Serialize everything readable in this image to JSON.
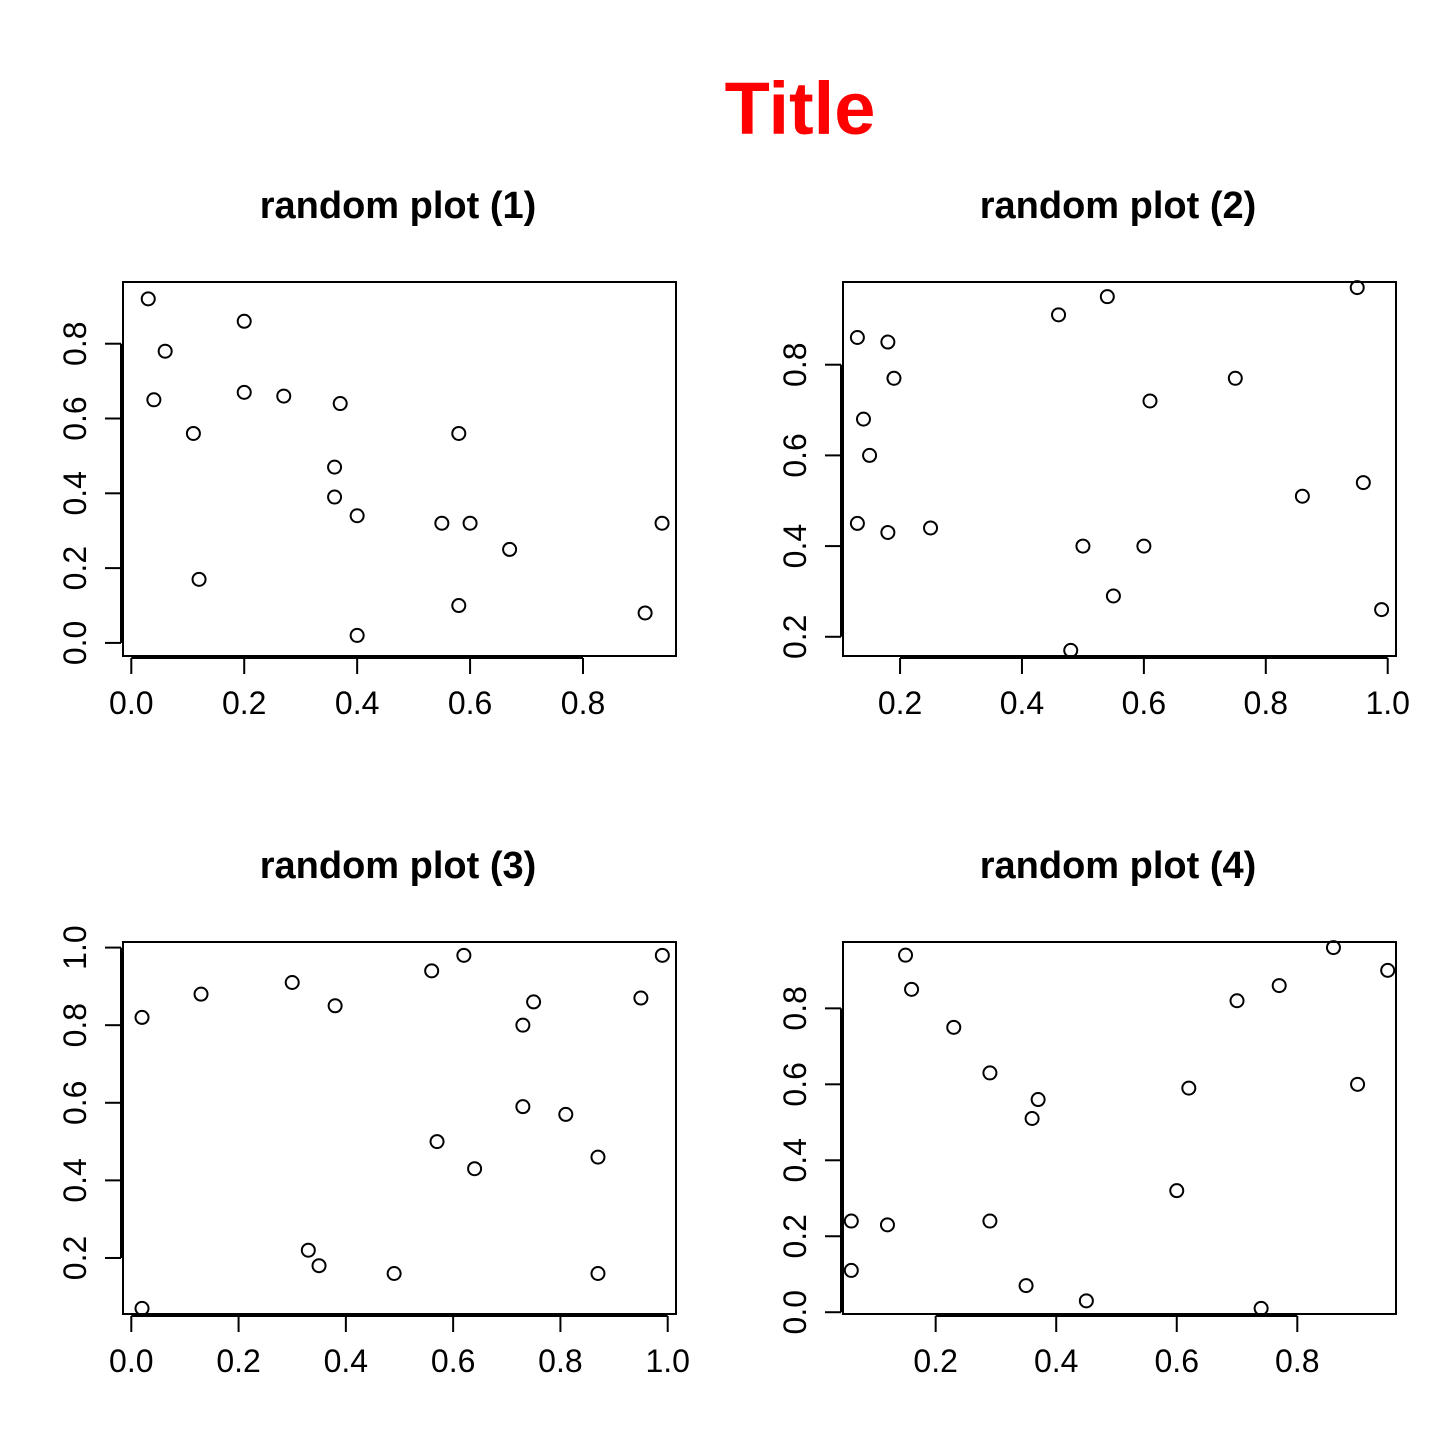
{
  "title": "Title",
  "title_color": "#ff0000",
  "chart_data": [
    {
      "type": "scatter",
      "title": "random plot (1)",
      "xlabel": "",
      "ylabel": "",
      "xlim": [
        0.0,
        0.95
      ],
      "ylim": [
        -0.02,
        0.95
      ],
      "xticks": [
        0.0,
        0.2,
        0.4,
        0.6,
        0.8
      ],
      "xtick_labels": [
        "0.0",
        "0.2",
        "0.4",
        "0.6",
        "0.8"
      ],
      "yticks": [
        0.0,
        0.2,
        0.4,
        0.6,
        0.8
      ],
      "ytick_labels": [
        "0.0",
        "0.2",
        "0.4",
        "0.6",
        "0.8"
      ],
      "grid": false,
      "legend": false,
      "points": [
        [
          0.03,
          0.92
        ],
        [
          0.2,
          0.86
        ],
        [
          0.06,
          0.78
        ],
        [
          0.04,
          0.65
        ],
        [
          0.2,
          0.67
        ],
        [
          0.27,
          0.66
        ],
        [
          0.37,
          0.64
        ],
        [
          0.11,
          0.56
        ],
        [
          0.58,
          0.56
        ],
        [
          0.36,
          0.47
        ],
        [
          0.36,
          0.39
        ],
        [
          0.4,
          0.34
        ],
        [
          0.55,
          0.32
        ],
        [
          0.6,
          0.32
        ],
        [
          0.94,
          0.32
        ],
        [
          0.67,
          0.25
        ],
        [
          0.12,
          0.17
        ],
        [
          0.58,
          0.1
        ],
        [
          0.91,
          0.08
        ],
        [
          0.4,
          0.02
        ]
      ]
    },
    {
      "type": "scatter",
      "title": "random plot (2)",
      "xlabel": "",
      "ylabel": "",
      "xlim": [
        0.12,
        1.0
      ],
      "ylim": [
        0.17,
        0.97
      ],
      "xticks": [
        0.2,
        0.4,
        0.6,
        0.8,
        1.0
      ],
      "xtick_labels": [
        "0.2",
        "0.4",
        "0.6",
        "0.8",
        "1.0"
      ],
      "yticks": [
        0.2,
        0.4,
        0.6,
        0.8
      ],
      "ytick_labels": [
        "0.2",
        "0.4",
        "0.6",
        "0.8"
      ],
      "grid": false,
      "legend": false,
      "points": [
        [
          0.13,
          0.86
        ],
        [
          0.18,
          0.85
        ],
        [
          0.14,
          0.68
        ],
        [
          0.19,
          0.77
        ],
        [
          0.15,
          0.6
        ],
        [
          0.13,
          0.45
        ],
        [
          0.18,
          0.43
        ],
        [
          0.25,
          0.44
        ],
        [
          0.46,
          0.91
        ],
        [
          0.54,
          0.95
        ],
        [
          0.61,
          0.72
        ],
        [
          0.75,
          0.77
        ],
        [
          0.5,
          0.4
        ],
        [
          0.6,
          0.4
        ],
        [
          0.55,
          0.29
        ],
        [
          0.48,
          0.17
        ],
        [
          0.86,
          0.51
        ],
        [
          0.95,
          0.97
        ],
        [
          0.96,
          0.54
        ],
        [
          0.99,
          0.26
        ]
      ]
    },
    {
      "type": "scatter",
      "title": "random plot (3)",
      "xlabel": "",
      "ylabel": "",
      "xlim": [
        0.0,
        1.0
      ],
      "ylim": [
        0.07,
        1.0
      ],
      "xticks": [
        0.0,
        0.2,
        0.4,
        0.6,
        0.8,
        1.0
      ],
      "xtick_labels": [
        "0.0",
        "0.2",
        "0.4",
        "0.6",
        "0.8",
        "1.0"
      ],
      "yticks": [
        0.2,
        0.4,
        0.6,
        0.8,
        1.0
      ],
      "ytick_labels": [
        "0.2",
        "0.4",
        "0.6",
        "0.8",
        "1.0"
      ],
      "grid": false,
      "legend": false,
      "points": [
        [
          0.02,
          0.82
        ],
        [
          0.13,
          0.88
        ],
        [
          0.3,
          0.91
        ],
        [
          0.38,
          0.85
        ],
        [
          0.56,
          0.94
        ],
        [
          0.62,
          0.98
        ],
        [
          0.99,
          0.98
        ],
        [
          0.95,
          0.87
        ],
        [
          0.75,
          0.86
        ],
        [
          0.73,
          0.8
        ],
        [
          0.73,
          0.59
        ],
        [
          0.81,
          0.57
        ],
        [
          0.57,
          0.5
        ],
        [
          0.87,
          0.46
        ],
        [
          0.64,
          0.43
        ],
        [
          0.33,
          0.22
        ],
        [
          0.35,
          0.18
        ],
        [
          0.49,
          0.16
        ],
        [
          0.87,
          0.16
        ],
        [
          0.02,
          0.07
        ]
      ]
    },
    {
      "type": "scatter",
      "title": "random plot (4)",
      "xlabel": "",
      "ylabel": "",
      "xlim": [
        0.06,
        0.95
      ],
      "ylim": [
        0.01,
        0.96
      ],
      "xticks": [
        0.2,
        0.4,
        0.6,
        0.8
      ],
      "xtick_labels": [
        "0.2",
        "0.4",
        "0.6",
        "0.8"
      ],
      "yticks": [
        0.0,
        0.2,
        0.4,
        0.6,
        0.8
      ],
      "ytick_labels": [
        "0.0",
        "0.2",
        "0.4",
        "0.6",
        "0.8"
      ],
      "grid": false,
      "legend": false,
      "points": [
        [
          0.15,
          0.94
        ],
        [
          0.16,
          0.85
        ],
        [
          0.23,
          0.75
        ],
        [
          0.29,
          0.63
        ],
        [
          0.37,
          0.56
        ],
        [
          0.36,
          0.51
        ],
        [
          0.62,
          0.59
        ],
        [
          0.7,
          0.82
        ],
        [
          0.77,
          0.86
        ],
        [
          0.86,
          0.96
        ],
        [
          0.95,
          0.9
        ],
        [
          0.9,
          0.6
        ],
        [
          0.6,
          0.32
        ],
        [
          0.06,
          0.24
        ],
        [
          0.12,
          0.23
        ],
        [
          0.29,
          0.24
        ],
        [
          0.06,
          0.11
        ],
        [
          0.35,
          0.07
        ],
        [
          0.45,
          0.03
        ],
        [
          0.74,
          0.01
        ]
      ]
    }
  ]
}
